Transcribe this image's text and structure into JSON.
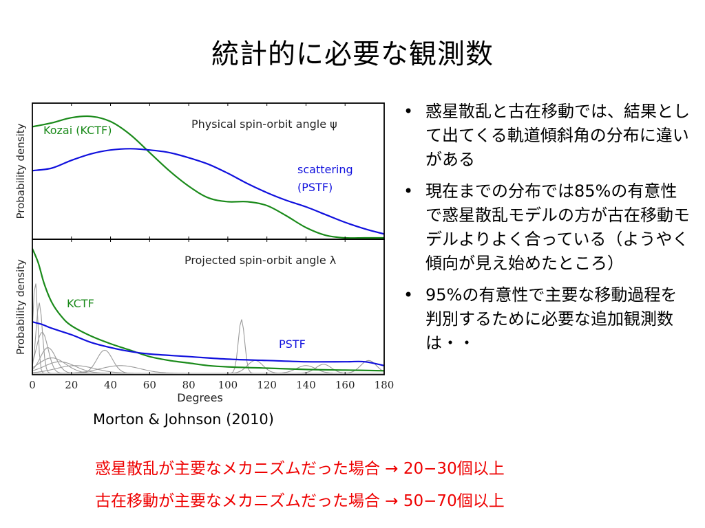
{
  "title": "統計的に必要な観測数",
  "citation": "Morton & Johnson (2010)",
  "bullets": [
    "惑星散乱と古在移動では、結果として出てくる軌道傾斜角の分布に違いがある",
    "現在までの分布では85%の有意性で惑星散乱モデルの方が古在移動モデルよりよく合っている（ようやく傾向が見え始めたところ）",
    "95%の有意性で主要な移動過程を判別するために必要な追加観測数は・・"
  ],
  "conclusions": [
    "惑星散乱が主要なメカニズムだった場合 → 20−30個以上",
    "古在移動が主要なメカニズムだった場合 → 50−70個以上"
  ],
  "colors": {
    "kctf": "#1a8a1a",
    "pstf": "#1010dd",
    "observed": "#9a9a9a",
    "conclusion": "#ee0000"
  },
  "chart_data": [
    {
      "type": "line",
      "title": "Physical spin-orbit angle ψ",
      "ylabel": "Probability density",
      "xlim": [
        0,
        180
      ],
      "ticks_visible": false,
      "series": [
        {
          "name": "Kozai (KCTF)",
          "color": "#1a8a1a",
          "x": [
            0,
            10,
            20,
            30,
            40,
            50,
            60,
            70,
            80,
            90,
            100,
            110,
            120,
            130,
            140,
            150,
            160,
            170,
            180
          ],
          "y": [
            0.86,
            0.89,
            0.93,
            0.94,
            0.9,
            0.8,
            0.66,
            0.52,
            0.4,
            0.31,
            0.28,
            0.28,
            0.25,
            0.17,
            0.08,
            0.02,
            0.0,
            0.0,
            0.0
          ]
        },
        {
          "name": "scattering (PSTF)",
          "color": "#1010dd",
          "x": [
            0,
            10,
            20,
            30,
            40,
            50,
            60,
            70,
            80,
            90,
            100,
            110,
            120,
            130,
            140,
            150,
            160,
            170,
            180
          ],
          "y": [
            0.52,
            0.54,
            0.6,
            0.65,
            0.68,
            0.69,
            0.68,
            0.66,
            0.62,
            0.57,
            0.5,
            0.42,
            0.35,
            0.29,
            0.24,
            0.18,
            0.12,
            0.07,
            0.03
          ]
        }
      ]
    },
    {
      "type": "line",
      "title": "Projected spin-orbit angle λ",
      "ylabel": "Probability density",
      "xlabel": "Degrees",
      "xlim": [
        0,
        180
      ],
      "xticks": [
        0,
        20,
        40,
        60,
        80,
        100,
        120,
        140,
        160,
        180
      ],
      "series": [
        {
          "name": "KCTF",
          "color": "#1a8a1a",
          "x": [
            0,
            3,
            6,
            10,
            15,
            20,
            30,
            40,
            50,
            60,
            70,
            80,
            90,
            100,
            120,
            140,
            160,
            180
          ],
          "y": [
            0.97,
            0.86,
            0.7,
            0.55,
            0.44,
            0.37,
            0.29,
            0.23,
            0.18,
            0.13,
            0.1,
            0.08,
            0.06,
            0.05,
            0.04,
            0.03,
            0.025,
            0.02
          ]
        },
        {
          "name": "PSTF",
          "color": "#1010dd",
          "x": [
            0,
            5,
            10,
            20,
            30,
            40,
            50,
            60,
            80,
            100,
            120,
            140,
            160,
            170,
            180
          ],
          "y": [
            0.4,
            0.38,
            0.35,
            0.3,
            0.24,
            0.2,
            0.17,
            0.15,
            0.13,
            0.11,
            0.1,
            0.09,
            0.09,
            0.09,
            0.06
          ]
        }
      ],
      "observed_peaks": [
        {
          "center": 1.5,
          "width": 1.2,
          "height": 0.72
        },
        {
          "center": 3.5,
          "width": 1.6,
          "height": 0.55
        },
        {
          "center": 5,
          "width": 3,
          "height": 0.32
        },
        {
          "center": 8,
          "width": 4,
          "height": 0.2
        },
        {
          "center": 10,
          "width": 7,
          "height": 0.12
        },
        {
          "center": 14,
          "width": 8,
          "height": 0.09
        },
        {
          "center": 22,
          "width": 10,
          "height": 0.06
        },
        {
          "center": 37,
          "width": 4,
          "height": 0.18
        },
        {
          "center": 45,
          "width": 10,
          "height": 0.06
        },
        {
          "center": 107,
          "width": 1.6,
          "height": 0.42
        },
        {
          "center": 114,
          "width": 4,
          "height": 0.1
        },
        {
          "center": 140,
          "width": 5,
          "height": 0.06
        },
        {
          "center": 149,
          "width": 4,
          "height": 0.07
        },
        {
          "center": 172,
          "width": 4,
          "height": 0.1
        }
      ]
    }
  ]
}
